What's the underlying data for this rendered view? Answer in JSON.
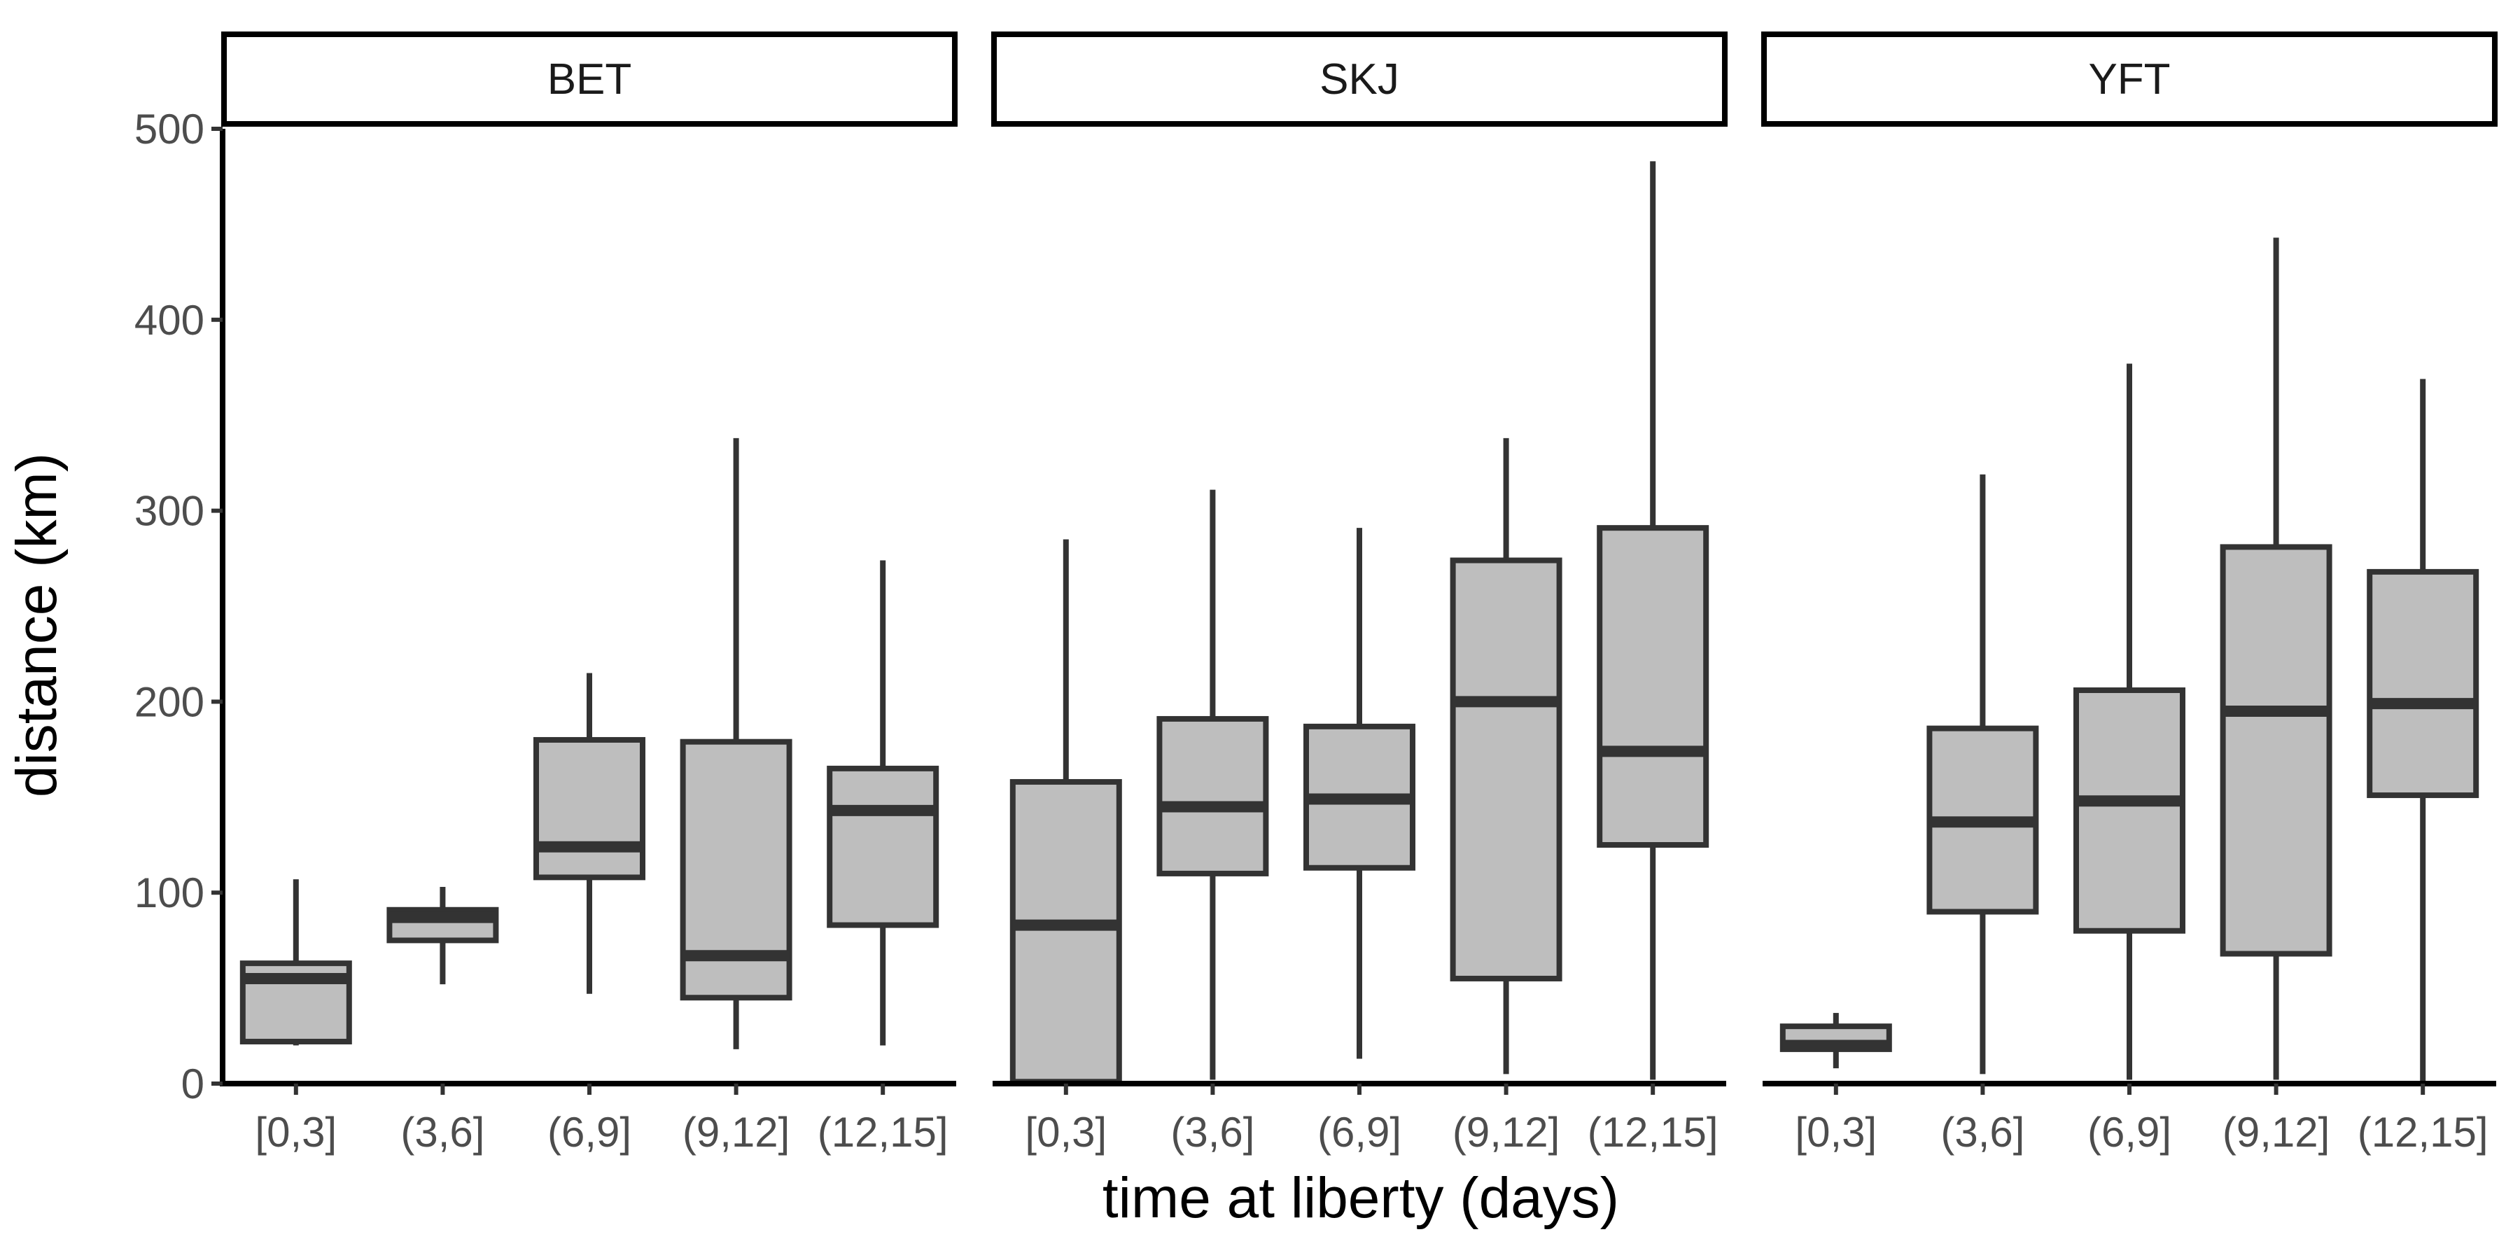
{
  "chart_data": {
    "type": "boxplot",
    "facets": [
      "BET",
      "SKJ",
      "YFT"
    ],
    "categories": [
      "[0,3]",
      "(3,6]",
      "(6,9]",
      "(9,12]",
      "(12,15]"
    ],
    "xlabel": "time at liberty (days)",
    "ylabel": "distance (km)",
    "ylim": [
      0,
      500
    ],
    "yticks": [
      0,
      100,
      200,
      300,
      400,
      500
    ],
    "grid": false,
    "box_fill": "#bebebe",
    "line_color": "#333333",
    "panels": [
      {
        "facet": "BET",
        "boxes": [
          {
            "category": "[0,3]",
            "min": 20,
            "q1": 22,
            "median": 55,
            "q3": 63,
            "max": 107
          },
          {
            "category": "(3,6]",
            "min": 52,
            "q1": 75,
            "median": 87,
            "q3": 91,
            "max": 103
          },
          {
            "category": "(6,9]",
            "min": 47,
            "q1": 108,
            "median": 124,
            "q3": 180,
            "max": 215
          },
          {
            "category": "(9,12]",
            "min": 18,
            "q1": 45,
            "median": 67,
            "q3": 179,
            "max": 338
          },
          {
            "category": "(12,15]",
            "min": 20,
            "q1": 83,
            "median": 143,
            "q3": 165,
            "max": 274
          }
        ]
      },
      {
        "facet": "SKJ",
        "boxes": [
          {
            "category": "[0,3]",
            "min": 0,
            "q1": 1,
            "median": 83,
            "q3": 158,
            "max": 285
          },
          {
            "category": "(3,6]",
            "min": 2,
            "q1": 110,
            "median": 145,
            "q3": 191,
            "max": 311
          },
          {
            "category": "(6,9]",
            "min": 13,
            "q1": 113,
            "median": 149,
            "q3": 187,
            "max": 291
          },
          {
            "category": "(9,12]",
            "min": 5,
            "q1": 55,
            "median": 200,
            "q3": 274,
            "max": 338
          },
          {
            "category": "(12,15]",
            "min": 2,
            "q1": 125,
            "median": 174,
            "q3": 291,
            "max": 483
          }
        ]
      },
      {
        "facet": "YFT",
        "boxes": [
          {
            "category": "[0,3]",
            "min": 8,
            "q1": 18,
            "median": 20,
            "q3": 30,
            "max": 37
          },
          {
            "category": "(3,6]",
            "min": 5,
            "q1": 90,
            "median": 137,
            "q3": 186,
            "max": 319
          },
          {
            "category": "(6,9]",
            "min": 2,
            "q1": 80,
            "median": 148,
            "q3": 206,
            "max": 377
          },
          {
            "category": "(9,12]",
            "min": 2,
            "q1": 68,
            "median": 195,
            "q3": 281,
            "max": 443
          },
          {
            "category": "(12,15]",
            "min": 0,
            "q1": 151,
            "median": 199,
            "q3": 268,
            "max": 369
          }
        ]
      }
    ]
  }
}
